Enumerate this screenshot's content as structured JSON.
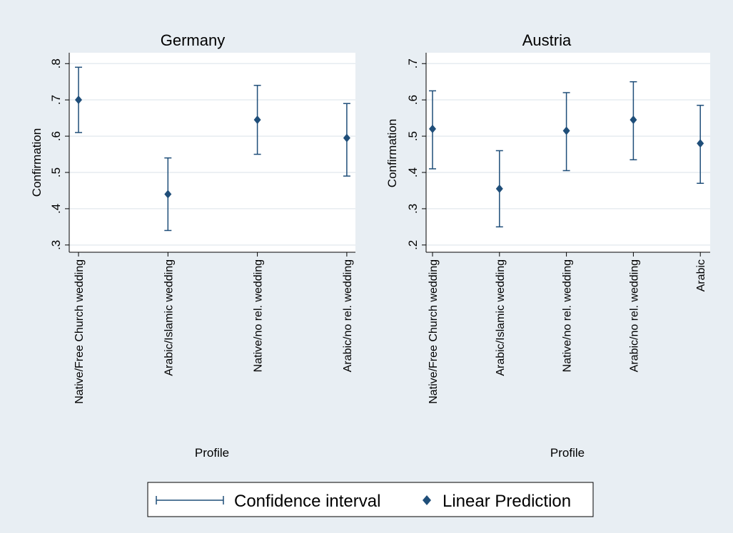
{
  "colors": {
    "outer_bg": "#e8eef3",
    "plot_bg": "#ffffff",
    "marker": "#1f4e79",
    "ci_line": "#1f4e79",
    "grid": "#e6ecf1",
    "axis": "#000000",
    "title_text": "#1a1a1a"
  },
  "chart_data": [
    {
      "type": "scatter",
      "title": "Germany",
      "xlabel": "Profile",
      "ylabel": "Confirmation",
      "ylim": [
        0.28,
        0.83
      ],
      "yticks": [
        0.3,
        0.4,
        0.5,
        0.6,
        0.7,
        0.8
      ],
      "ytick_labels": [
        ".3",
        ".4",
        ".5",
        ".6",
        ".7",
        ".8"
      ],
      "grid": "horizontal",
      "categories": [
        "Native/Free Church wedding",
        "Arabic/Islamic wedding",
        "Native/no rel. wedding",
        "Arabic/no rel. wedding"
      ],
      "points": [
        {
          "category": "Native/Free Church wedding",
          "y": 0.7,
          "ci_low": 0.61,
          "ci_high": 0.79
        },
        {
          "category": "Arabic/Islamic wedding",
          "y": 0.44,
          "ci_low": 0.34,
          "ci_high": 0.54
        },
        {
          "category": "Native/no rel. wedding",
          "y": 0.645,
          "ci_low": 0.55,
          "ci_high": 0.74
        },
        {
          "category": "Arabic/no rel. wedding",
          "y": 0.595,
          "ci_low": 0.49,
          "ci_high": 0.69
        }
      ]
    },
    {
      "type": "scatter",
      "title": "Austria",
      "xlabel": "Profile",
      "ylabel": "Confirmation",
      "ylim": [
        0.18,
        0.73
      ],
      "yticks": [
        0.2,
        0.3,
        0.4,
        0.5,
        0.6,
        0.7
      ],
      "ytick_labels": [
        ".2",
        ".3",
        ".4",
        ".5",
        ".6",
        ".7"
      ],
      "grid": "horizontal",
      "categories": [
        "Native/Free Church wedding",
        "Arabic/Islamic wedding",
        "Native/no rel. wedding",
        "Arabic/no rel. wedding",
        "Arabic"
      ],
      "points": [
        {
          "category": "Native/Free Church wedding",
          "y": 0.52,
          "ci_low": 0.41,
          "ci_high": 0.625
        },
        {
          "category": "Arabic/Islamic wedding",
          "y": 0.355,
          "ci_low": 0.25,
          "ci_high": 0.46
        },
        {
          "category": "Native/no rel. wedding",
          "y": 0.515,
          "ci_low": 0.405,
          "ci_high": 0.62
        },
        {
          "category": "Arabic/no rel. wedding",
          "y": 0.545,
          "ci_low": 0.435,
          "ci_high": 0.65
        },
        {
          "category": "Arabic",
          "y": 0.48,
          "ci_low": 0.37,
          "ci_high": 0.585
        }
      ]
    }
  ],
  "legend": {
    "placement": "bottom-center",
    "items": [
      {
        "label": "Confidence interval",
        "symbol": "ci-line"
      },
      {
        "label": "Linear Prediction",
        "symbol": "diamond"
      }
    ]
  }
}
